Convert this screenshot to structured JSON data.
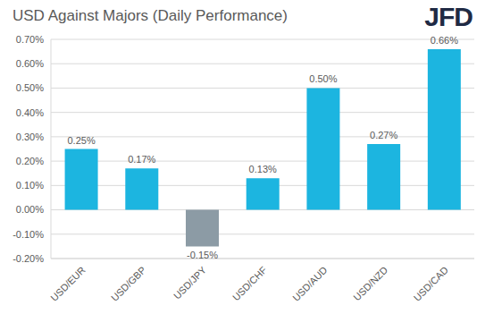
{
  "chart_data": {
    "type": "bar",
    "title": "USD Against Majors (Daily Performance)",
    "annotations": [
      "JFD"
    ],
    "categories": [
      "USD/EUR",
      "USD/GBP",
      "USD/JPY",
      "USD/CHF",
      "USD/AUD",
      "USD/NZD",
      "USD/CAD"
    ],
    "values": [
      0.25,
      0.17,
      -0.15,
      0.13,
      0.5,
      0.27,
      0.66
    ],
    "value_labels": [
      "0.25%",
      "0.17%",
      "-0.15%",
      "0.13%",
      "0.50%",
      "0.27%",
      "0.66%"
    ],
    "colors": [
      "#1cb5e0",
      "#1cb5e0",
      "#8c9ba5",
      "#1cb5e0",
      "#1cb5e0",
      "#1cb5e0",
      "#1cb5e0"
    ],
    "ylim": [
      -0.2,
      0.7
    ],
    "yticks": [
      {
        "value": -0.2,
        "label": "-0.20%"
      },
      {
        "value": -0.1,
        "label": "-0.10%"
      },
      {
        "value": 0,
        "label": "0.00%"
      },
      {
        "value": 0.1,
        "label": "0.10%"
      },
      {
        "value": 0.2,
        "label": "0.20%"
      },
      {
        "value": 0.3,
        "label": "0.30%"
      },
      {
        "value": 0.4,
        "label": "0.40%"
      },
      {
        "value": 0.5,
        "label": "0.50%"
      },
      {
        "value": 0.6,
        "label": "0.60%"
      },
      {
        "value": 0.7,
        "label": "0.70%"
      }
    ],
    "grid": true,
    "data_labels": true
  }
}
